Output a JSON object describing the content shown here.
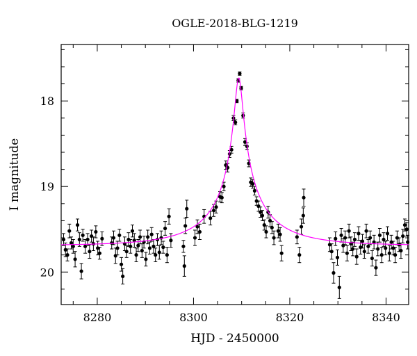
{
  "chart_data": {
    "type": "scatter",
    "title": "OGLE-2018-BLG-1219",
    "xlabel": "HJD - 2450000",
    "ylabel": "I magnitude",
    "xlim": [
      8272.5,
      8344.7
    ],
    "ylim": [
      20.38,
      17.34
    ],
    "y_inverted": true,
    "grid": false,
    "legend": "none",
    "x_ticks": [
      8280,
      8300,
      8320,
      8340
    ],
    "y_ticks": [
      18,
      19,
      20
    ],
    "series": [
      {
        "marker": "filled-circle-with-errorbars",
        "color": "#000000",
        "points": [
          [
            8273.0,
            19.62,
            0.07
          ],
          [
            8273.4,
            19.74,
            0.08
          ],
          [
            8273.8,
            19.8,
            0.07
          ],
          [
            8274.2,
            19.52,
            0.08
          ],
          [
            8274.6,
            19.66,
            0.07
          ],
          [
            8275.0,
            19.7,
            0.08
          ],
          [
            8275.4,
            19.85,
            0.09
          ],
          [
            8275.9,
            19.45,
            0.07
          ],
          [
            8276.3,
            19.62,
            0.08
          ],
          [
            8276.7,
            19.99,
            0.09
          ],
          [
            8277.0,
            19.57,
            0.07
          ],
          [
            8277.5,
            19.7,
            0.08
          ],
          [
            8278.0,
            19.62,
            0.07
          ],
          [
            8278.4,
            19.76,
            0.08
          ],
          [
            8278.8,
            19.58,
            0.07
          ],
          [
            8279.2,
            19.67,
            0.08
          ],
          [
            8279.7,
            19.53,
            0.07
          ],
          [
            8280.1,
            19.72,
            0.08
          ],
          [
            8280.5,
            19.78,
            0.07
          ],
          [
            8281.0,
            19.61,
            0.08
          ],
          [
            8283.0,
            19.66,
            0.07
          ],
          [
            8283.4,
            19.6,
            0.08
          ],
          [
            8283.8,
            19.81,
            0.09
          ],
          [
            8284.2,
            19.72,
            0.08
          ],
          [
            8284.6,
            19.57,
            0.07
          ],
          [
            8285.0,
            19.91,
            0.08
          ],
          [
            8285.3,
            20.05,
            0.09
          ],
          [
            8285.7,
            19.67,
            0.08
          ],
          [
            8286.1,
            19.76,
            0.07
          ],
          [
            8286.5,
            19.62,
            0.08
          ],
          [
            8286.9,
            19.7,
            0.08
          ],
          [
            8287.3,
            19.52,
            0.07
          ],
          [
            8287.7,
            19.63,
            0.08
          ],
          [
            8288.1,
            19.8,
            0.08
          ],
          [
            8288.5,
            19.69,
            0.07
          ],
          [
            8288.9,
            19.59,
            0.08
          ],
          [
            8289.3,
            19.75,
            0.08
          ],
          [
            8289.7,
            19.65,
            0.07
          ],
          [
            8290.1,
            19.85,
            0.08
          ],
          [
            8290.5,
            19.59,
            0.08
          ],
          [
            8290.9,
            19.72,
            0.07
          ],
          [
            8291.3,
            19.56,
            0.08
          ],
          [
            8291.7,
            19.7,
            0.08
          ],
          [
            8292.1,
            19.8,
            0.08
          ],
          [
            8292.5,
            19.62,
            0.07
          ],
          [
            8292.9,
            19.77,
            0.08
          ],
          [
            8293.3,
            19.6,
            0.08
          ],
          [
            8293.7,
            19.71,
            0.07
          ],
          [
            8294.1,
            19.49,
            0.08
          ],
          [
            8294.5,
            19.8,
            0.09
          ],
          [
            8294.9,
            19.35,
            0.09
          ],
          [
            8295.3,
            19.63,
            0.08
          ],
          [
            8297.9,
            19.7,
            0.07
          ],
          [
            8298.1,
            19.93,
            0.12
          ],
          [
            8298.3,
            19.46,
            0.09
          ],
          [
            8298.6,
            19.26,
            0.1
          ],
          [
            8300.3,
            19.6,
            0.09
          ],
          [
            8300.8,
            19.47,
            0.08
          ],
          [
            8301.3,
            19.53,
            0.09
          ],
          [
            8302.2,
            19.35,
            0.08
          ],
          [
            8303.5,
            19.37,
            0.08
          ],
          [
            8304.2,
            19.28,
            0.07
          ],
          [
            8304.7,
            19.24,
            0.07
          ],
          [
            8305.5,
            19.12,
            0.06
          ],
          [
            8305.9,
            19.13,
            0.06
          ],
          [
            8306.3,
            19.0,
            0.05
          ],
          [
            8306.7,
            18.75,
            0.05
          ],
          [
            8307.1,
            18.78,
            0.05
          ],
          [
            8307.5,
            18.62,
            0.04
          ],
          [
            8307.9,
            18.57,
            0.04
          ],
          [
            8308.3,
            18.2,
            0.03
          ],
          [
            8308.7,
            18.25,
            0.03
          ],
          [
            8309.0,
            18.0,
            0.02
          ],
          [
            8309.3,
            17.76,
            0.02
          ],
          [
            8309.6,
            17.68,
            0.02
          ],
          [
            8309.9,
            17.85,
            0.02
          ],
          [
            8310.3,
            18.17,
            0.03
          ],
          [
            8310.7,
            18.48,
            0.04
          ],
          [
            8311.1,
            18.53,
            0.04
          ],
          [
            8311.5,
            18.73,
            0.04
          ],
          [
            8311.9,
            18.95,
            0.05
          ],
          [
            8312.3,
            18.97,
            0.05
          ],
          [
            8312.7,
            19.05,
            0.05
          ],
          [
            8313.1,
            19.17,
            0.05
          ],
          [
            8313.5,
            19.23,
            0.06
          ],
          [
            8313.9,
            19.3,
            0.06
          ],
          [
            8314.3,
            19.34,
            0.06
          ],
          [
            8314.7,
            19.45,
            0.06
          ],
          [
            8315.1,
            19.53,
            0.07
          ],
          [
            8315.5,
            19.3,
            0.07
          ],
          [
            8315.9,
            19.4,
            0.07
          ],
          [
            8316.3,
            19.48,
            0.07
          ],
          [
            8316.7,
            19.6,
            0.08
          ],
          [
            8317.6,
            19.52,
            0.08
          ],
          [
            8318.0,
            19.56,
            0.08
          ],
          [
            8318.3,
            19.78,
            0.09
          ],
          [
            8321.5,
            19.59,
            0.08
          ],
          [
            8322.0,
            19.8,
            0.09
          ],
          [
            8322.4,
            19.47,
            0.09
          ],
          [
            8322.8,
            19.34,
            0.09
          ],
          [
            8322.9,
            19.13,
            0.1
          ],
          [
            8328.3,
            19.68,
            0.08
          ],
          [
            8328.7,
            19.76,
            0.09
          ],
          [
            8329.1,
            20.01,
            0.12
          ],
          [
            8329.5,
            19.61,
            0.08
          ],
          [
            8329.9,
            19.83,
            0.09
          ],
          [
            8330.3,
            20.18,
            0.13
          ],
          [
            8330.7,
            19.57,
            0.08
          ],
          [
            8331.1,
            19.69,
            0.08
          ],
          [
            8331.5,
            19.6,
            0.08
          ],
          [
            8331.9,
            19.78,
            0.09
          ],
          [
            8332.3,
            19.52,
            0.08
          ],
          [
            8332.7,
            19.67,
            0.08
          ],
          [
            8333.1,
            19.73,
            0.08
          ],
          [
            8333.5,
            19.62,
            0.08
          ],
          [
            8333.9,
            19.82,
            0.09
          ],
          [
            8334.3,
            19.55,
            0.08
          ],
          [
            8334.7,
            19.71,
            0.08
          ],
          [
            8335.1,
            19.64,
            0.08
          ],
          [
            8335.5,
            19.76,
            0.08
          ],
          [
            8335.9,
            19.52,
            0.08
          ],
          [
            8336.3,
            19.7,
            0.08
          ],
          [
            8336.7,
            19.6,
            0.08
          ],
          [
            8337.1,
            19.84,
            0.09
          ],
          [
            8337.5,
            19.65,
            0.08
          ],
          [
            8337.9,
            19.95,
            0.09
          ],
          [
            8338.3,
            19.73,
            0.08
          ],
          [
            8338.7,
            19.57,
            0.08
          ],
          [
            8339.1,
            19.8,
            0.09
          ],
          [
            8339.5,
            19.62,
            0.08
          ],
          [
            8339.9,
            19.72,
            0.08
          ],
          [
            8340.3,
            19.55,
            0.08
          ],
          [
            8340.7,
            19.78,
            0.09
          ],
          [
            8341.1,
            19.65,
            0.08
          ],
          [
            8341.5,
            19.72,
            0.08
          ],
          [
            8341.9,
            19.8,
            0.09
          ],
          [
            8342.3,
            19.6,
            0.08
          ],
          [
            8342.7,
            19.68,
            0.08
          ],
          [
            8343.1,
            19.75,
            0.09
          ],
          [
            8343.5,
            19.58,
            0.08
          ],
          [
            8343.9,
            19.45,
            0.07
          ],
          [
            8344.3,
            19.5,
            0.08
          ],
          [
            8344.5,
            19.65,
            0.08
          ]
        ]
      },
      {
        "type": "line",
        "color": "#ff00ff",
        "model": {
          "t0": 8309.4,
          "base_mag": 19.69,
          "peak_mag": 17.73,
          "u0": 0.054,
          "tE": 14.5
        }
      }
    ]
  }
}
